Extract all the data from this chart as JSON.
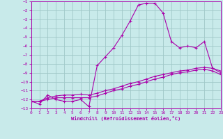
{
  "xlabel": "Windchill (Refroidissement éolien,°C)",
  "bg_color": "#c8eaea",
  "grid_color": "#a0c8c8",
  "line_color": "#aa00aa",
  "xmin": 0,
  "xmax": 23,
  "ymin": -13,
  "ymax": -1,
  "x_ticks": [
    0,
    1,
    2,
    3,
    4,
    5,
    6,
    7,
    8,
    9,
    10,
    11,
    12,
    13,
    14,
    15,
    16,
    17,
    18,
    19,
    20,
    21,
    22,
    23
  ],
  "y_ticks": [
    -1,
    -2,
    -3,
    -4,
    -5,
    -6,
    -7,
    -8,
    -9,
    -10,
    -11,
    -12,
    -13
  ],
  "line1_x": [
    0,
    1,
    2,
    3,
    4,
    5,
    6,
    7,
    8,
    9,
    10,
    11,
    12,
    13,
    14,
    15,
    16,
    17,
    18,
    19,
    20,
    21,
    22,
    23
  ],
  "line1_y": [
    -12.2,
    -12.5,
    -11.5,
    -12.0,
    -12.2,
    -12.2,
    -12.0,
    -12.8,
    -8.2,
    -7.2,
    -6.2,
    -4.8,
    -3.2,
    -1.4,
    -1.2,
    -1.2,
    -2.3,
    -5.5,
    -6.2,
    -6.0,
    -6.2,
    -5.5,
    -8.5,
    -9.0
  ],
  "line2_x": [
    0,
    1,
    2,
    3,
    4,
    5,
    6,
    7,
    8,
    9,
    10,
    11,
    12,
    13,
    14,
    15,
    16,
    17,
    18,
    19,
    20,
    21,
    22,
    23
  ],
  "line2_y": [
    -12.2,
    -12.2,
    -11.8,
    -11.6,
    -11.5,
    -11.5,
    -11.4,
    -11.5,
    -11.3,
    -11.0,
    -10.8,
    -10.5,
    -10.2,
    -10.0,
    -9.7,
    -9.4,
    -9.2,
    -9.0,
    -8.8,
    -8.7,
    -8.5,
    -8.4,
    -8.5,
    -8.8
  ],
  "line3_x": [
    0,
    1,
    2,
    3,
    4,
    5,
    6,
    7,
    8,
    9,
    10,
    11,
    12,
    13,
    14,
    15,
    16,
    17,
    18,
    19,
    20,
    21,
    22,
    23
  ],
  "line3_y": [
    -12.2,
    -12.2,
    -12.0,
    -11.8,
    -11.8,
    -11.8,
    -11.8,
    -11.8,
    -11.6,
    -11.3,
    -11.0,
    -10.8,
    -10.5,
    -10.3,
    -10.0,
    -9.7,
    -9.5,
    -9.2,
    -9.0,
    -8.9,
    -8.7,
    -8.6,
    -8.8,
    -9.2
  ]
}
